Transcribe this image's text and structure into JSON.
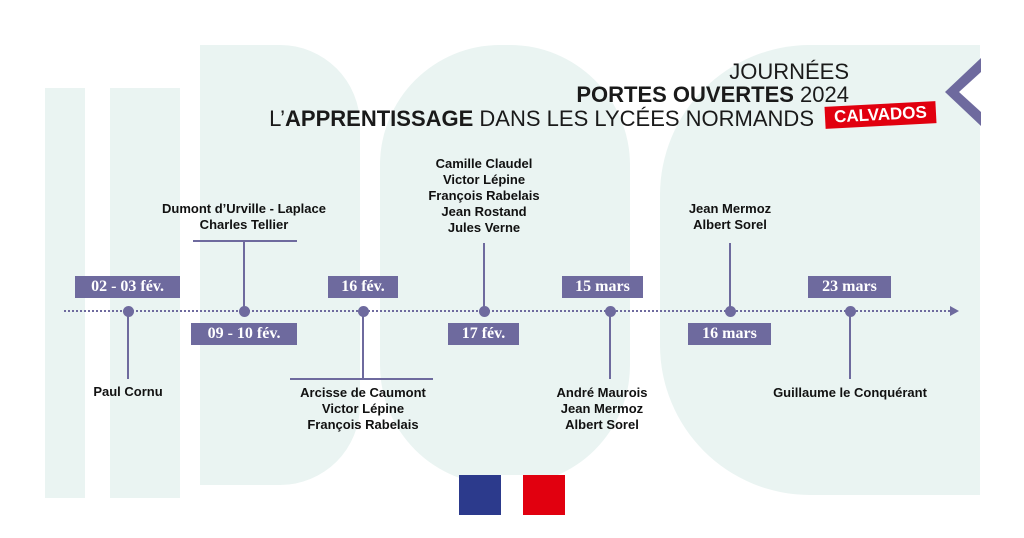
{
  "header": {
    "line1": "JOURNÉES",
    "line2_bold": "PORTES OUVERTES",
    "line2_year": "2024",
    "line3_prefix": "L’",
    "line3_bold": "APPRENTISSAGE",
    "line3_rest": "DANS LES LYCÉES NORMANDS",
    "department": "CALVADOS"
  },
  "events": [
    {
      "date": "02 - 03 fév.",
      "schools": [
        "Paul Cornu"
      ]
    },
    {
      "date": "09 - 10 fév.",
      "schools": [
        "Dumont d’Urville - Laplace",
        "Charles Tellier"
      ]
    },
    {
      "date": "16 fév.",
      "schools": [
        "Arcisse de Caumont",
        "Victor Lépine",
        "François Rabelais"
      ]
    },
    {
      "date": "17 fév.",
      "schools": [
        "Camille Claudel",
        "Victor Lépine",
        "François Rabelais",
        "Jean Rostand",
        "Jules Verne"
      ]
    },
    {
      "date": "15 mars",
      "schools": [
        "André Maurois",
        "Jean Mermoz",
        "Albert Sorel"
      ]
    },
    {
      "date": "16 mars",
      "schools": [
        "Jean Mermoz",
        "Albert Sorel"
      ]
    },
    {
      "date": "23 mars",
      "schools": [
        "Guillaume le Conquérant"
      ]
    }
  ],
  "colors": {
    "accent": "#6e6a9e",
    "red": "#e1000f",
    "blue": "#2c3a8c",
    "background_shape": "#eaf4f2"
  }
}
